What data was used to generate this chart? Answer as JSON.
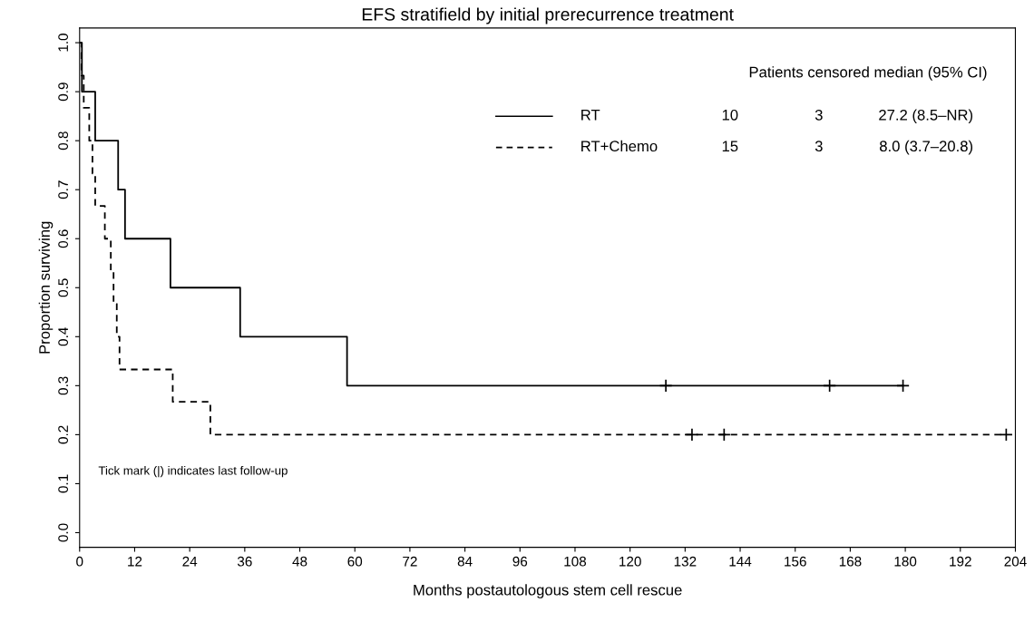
{
  "chart_data": {
    "type": "step",
    "title": "EFS stratifield by initial prerecurrence treatment",
    "xlabel": "Months postautologous stem cell rescue",
    "ylabel": "Proportion surviving",
    "legend_title": "Patients censored median (95% CI)",
    "annotations": [
      "10",
      "3",
      "27.2 (8.5–NR)",
      "15",
      "3",
      "8.0 (3.7–20.8)",
      "Tick mark (|) indicates last follow-up"
    ],
    "series": [
      {
        "name": "RT",
        "color": "#000000",
        "line_style": "solid",
        "x": [
          0,
          0.5,
          3.4,
          8.4,
          9.9,
          19.8,
          35,
          58.3,
          179.5
        ],
        "values": [
          1.0,
          0.9,
          0.8,
          0.7,
          0.6,
          0.5,
          0.4,
          0.3,
          0.3
        ]
      },
      {
        "name": "RT+Chemo",
        "color": "#000000",
        "line_style": "dashed",
        "x": [
          0,
          0.4,
          0.9,
          2.1,
          2.8,
          3.4,
          5.5,
          6.8,
          7.4,
          8.1,
          8.7,
          20.3,
          28.5,
          202
        ],
        "values": [
          1.0,
          0.933,
          0.867,
          0.8,
          0.733,
          0.667,
          0.6,
          0.533,
          0.467,
          0.4,
          0.333,
          0.267,
          0.2,
          0.2
        ]
      },
      {
        "type": "scatter",
        "marker": "cross",
        "color": "#000000",
        "x": [
          127.8,
          163.5,
          179.5
        ],
        "values": [
          0.3,
          0.3,
          0.3
        ]
      },
      {
        "type": "scatter",
        "marker": "cross",
        "color": "#000000",
        "x": [
          133.5,
          140.5,
          202
        ],
        "values": [
          0.2,
          0.2,
          0.2
        ]
      }
    ],
    "xlim": [
      0,
      204
    ],
    "xticks": [
      0,
      12,
      24,
      36,
      48,
      60,
      72,
      84,
      96,
      108,
      120,
      132,
      144,
      156,
      168,
      180,
      192,
      204
    ],
    "ylim": [
      -0.03,
      1.03
    ],
    "yticks": [
      {
        "value": 0,
        "label": "0.0"
      },
      0.1,
      0.2,
      0.3,
      0.4,
      0.5,
      0.6,
      0.7,
      0.8,
      0.9,
      {
        "value": 1,
        "label": "1.0"
      }
    ],
    "grid": false,
    "legend": "top right"
  }
}
